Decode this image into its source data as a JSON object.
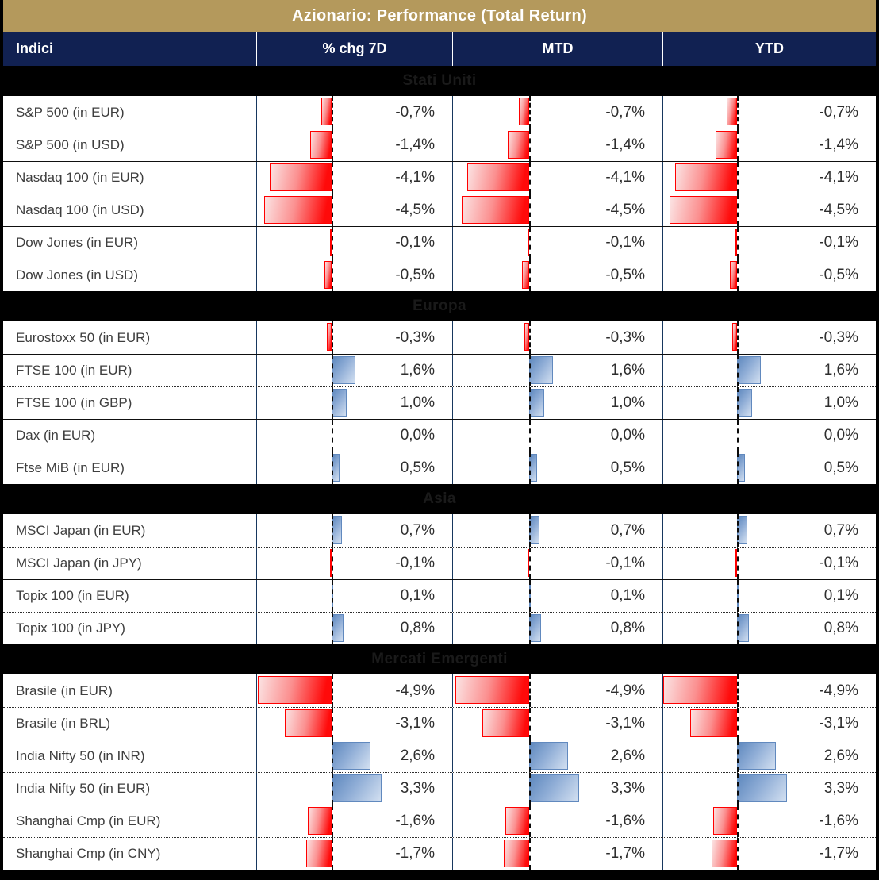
{
  "colors": {
    "title_bar_gold": "#B4995C",
    "header_navy": "#112152",
    "section_bar_black": "#000000",
    "section_text": "#1A1A1A",
    "negative_bar_border_red": "#FF0000",
    "negative_bar_fill_light": "#FBE3E3",
    "positive_bar_border_blue": "#6189BE",
    "positive_bar_fill_dark": "#5E88BE",
    "positive_bar_fill_light": "#D3E0F1",
    "column_separator_navy": "#17375E"
  },
  "chart_data": {
    "type": "table",
    "title": "Azionario: Performance (Total Return)",
    "columns": [
      "Indici",
      "% chg 7D",
      "MTD",
      "YTD"
    ],
    "value_unit": "percent",
    "bar_style": {
      "negative": "red gradient bar extending left of dashed zero axis",
      "positive": "blue gradient bar extending right of dashed zero axis",
      "zero_axis": "black dashed vertical line in each value column"
    },
    "sections": [
      {
        "label": "Stati Uniti",
        "rows": [
          {
            "label": "S&P 500 (in EUR)",
            "values": [
              -0.7,
              -0.7,
              -0.7
            ],
            "display": [
              "-0,7%",
              "-0,7%",
              "-0,7%"
            ],
            "sep": null
          },
          {
            "label": "S&P 500 (in USD)",
            "values": [
              -1.4,
              -1.4,
              -1.4
            ],
            "display": [
              "-1,4%",
              "-1,4%",
              "-1,4%"
            ],
            "sep": "dotted"
          },
          {
            "label": "Nasdaq 100 (in EUR)",
            "values": [
              -4.1,
              -4.1,
              -4.1
            ],
            "display": [
              "-4,1%",
              "-4,1%",
              "-4,1%"
            ],
            "sep": "solid"
          },
          {
            "label": "Nasdaq 100 (in USD)",
            "values": [
              -4.5,
              -4.5,
              -4.5
            ],
            "display": [
              "-4,5%",
              "-4,5%",
              "-4,5%"
            ],
            "sep": "dotted"
          },
          {
            "label": "Dow Jones (in EUR)",
            "values": [
              -0.1,
              -0.1,
              -0.1
            ],
            "display": [
              "-0,1%",
              "-0,1%",
              "-0,1%"
            ],
            "sep": "solid"
          },
          {
            "label": "Dow Jones (in USD)",
            "values": [
              -0.5,
              -0.5,
              -0.5
            ],
            "display": [
              "-0,5%",
              "-0,5%",
              "-0,5%"
            ],
            "sep": "dotted"
          }
        ]
      },
      {
        "label": "Europa",
        "rows": [
          {
            "label": "Eurostoxx 50 (in EUR)",
            "values": [
              -0.3,
              -0.3,
              -0.3
            ],
            "display": [
              "-0,3%",
              "-0,3%",
              "-0,3%"
            ],
            "sep": null
          },
          {
            "label": "FTSE 100 (in EUR)",
            "values": [
              1.6,
              1.6,
              1.6
            ],
            "display": [
              "1,6%",
              "1,6%",
              "1,6%"
            ],
            "sep": "solid"
          },
          {
            "label": "FTSE 100 (in GBP)",
            "values": [
              1.0,
              1.0,
              1.0
            ],
            "display": [
              "1,0%",
              "1,0%",
              "1,0%"
            ],
            "sep": "dotted"
          },
          {
            "label": "Dax (in EUR)",
            "values": [
              0.0,
              0.0,
              0.0
            ],
            "display": [
              "0,0%",
              "0,0%",
              "0,0%"
            ],
            "sep": "solid"
          },
          {
            "label": "Ftse MiB (in EUR)",
            "values": [
              0.5,
              0.5,
              0.5
            ],
            "display": [
              "0,5%",
              "0,5%",
              "0,5%"
            ],
            "sep": "solid"
          }
        ]
      },
      {
        "label": "Asia",
        "rows": [
          {
            "label": "MSCI Japan (in EUR)",
            "values": [
              0.7,
              0.7,
              0.7
            ],
            "display": [
              "0,7%",
              "0,7%",
              "0,7%"
            ],
            "sep": null
          },
          {
            "label": "MSCI Japan (in JPY)",
            "values": [
              -0.1,
              -0.1,
              -0.1
            ],
            "display": [
              "-0,1%",
              "-0,1%",
              "-0,1%"
            ],
            "sep": "dotted"
          },
          {
            "label": "Topix 100 (in EUR)",
            "values": [
              0.1,
              0.1,
              0.1
            ],
            "display": [
              "0,1%",
              "0,1%",
              "0,1%"
            ],
            "sep": "solid"
          },
          {
            "label": "Topix 100 (in JPY)",
            "values": [
              0.8,
              0.8,
              0.8
            ],
            "display": [
              "0,8%",
              "0,8%",
              "0,8%"
            ],
            "sep": "dotted"
          }
        ]
      },
      {
        "label": "Mercati Emergenti",
        "rows": [
          {
            "label": "Brasile (in EUR)",
            "values": [
              -4.9,
              -4.9,
              -4.9
            ],
            "display": [
              "-4,9%",
              "-4,9%",
              "-4,9%"
            ],
            "sep": null
          },
          {
            "label": "Brasile (in BRL)",
            "values": [
              -3.1,
              -3.1,
              -3.1
            ],
            "display": [
              "-3,1%",
              "-3,1%",
              "-3,1%"
            ],
            "sep": "dotted"
          },
          {
            "label": "India Nifty 50 (in INR)",
            "values": [
              2.6,
              2.6,
              2.6
            ],
            "display": [
              "2,6%",
              "2,6%",
              "2,6%"
            ],
            "sep": "solid"
          },
          {
            "label": "India Nifty 50 (in EUR)",
            "values": [
              3.3,
              3.3,
              3.3
            ],
            "display": [
              "3,3%",
              "3,3%",
              "3,3%"
            ],
            "sep": "dotted"
          },
          {
            "label": "Shanghai Cmp (in EUR)",
            "values": [
              -1.6,
              -1.6,
              -1.6
            ],
            "display": [
              "-1,6%",
              "-1,6%",
              "-1,6%"
            ],
            "sep": "solid"
          },
          {
            "label": "Shanghai Cmp (in CNY)",
            "values": [
              -1.7,
              -1.7,
              -1.7
            ],
            "display": [
              "-1,7%",
              "-1,7%",
              "-1,7%"
            ],
            "sep": "dotted"
          }
        ]
      }
    ]
  }
}
